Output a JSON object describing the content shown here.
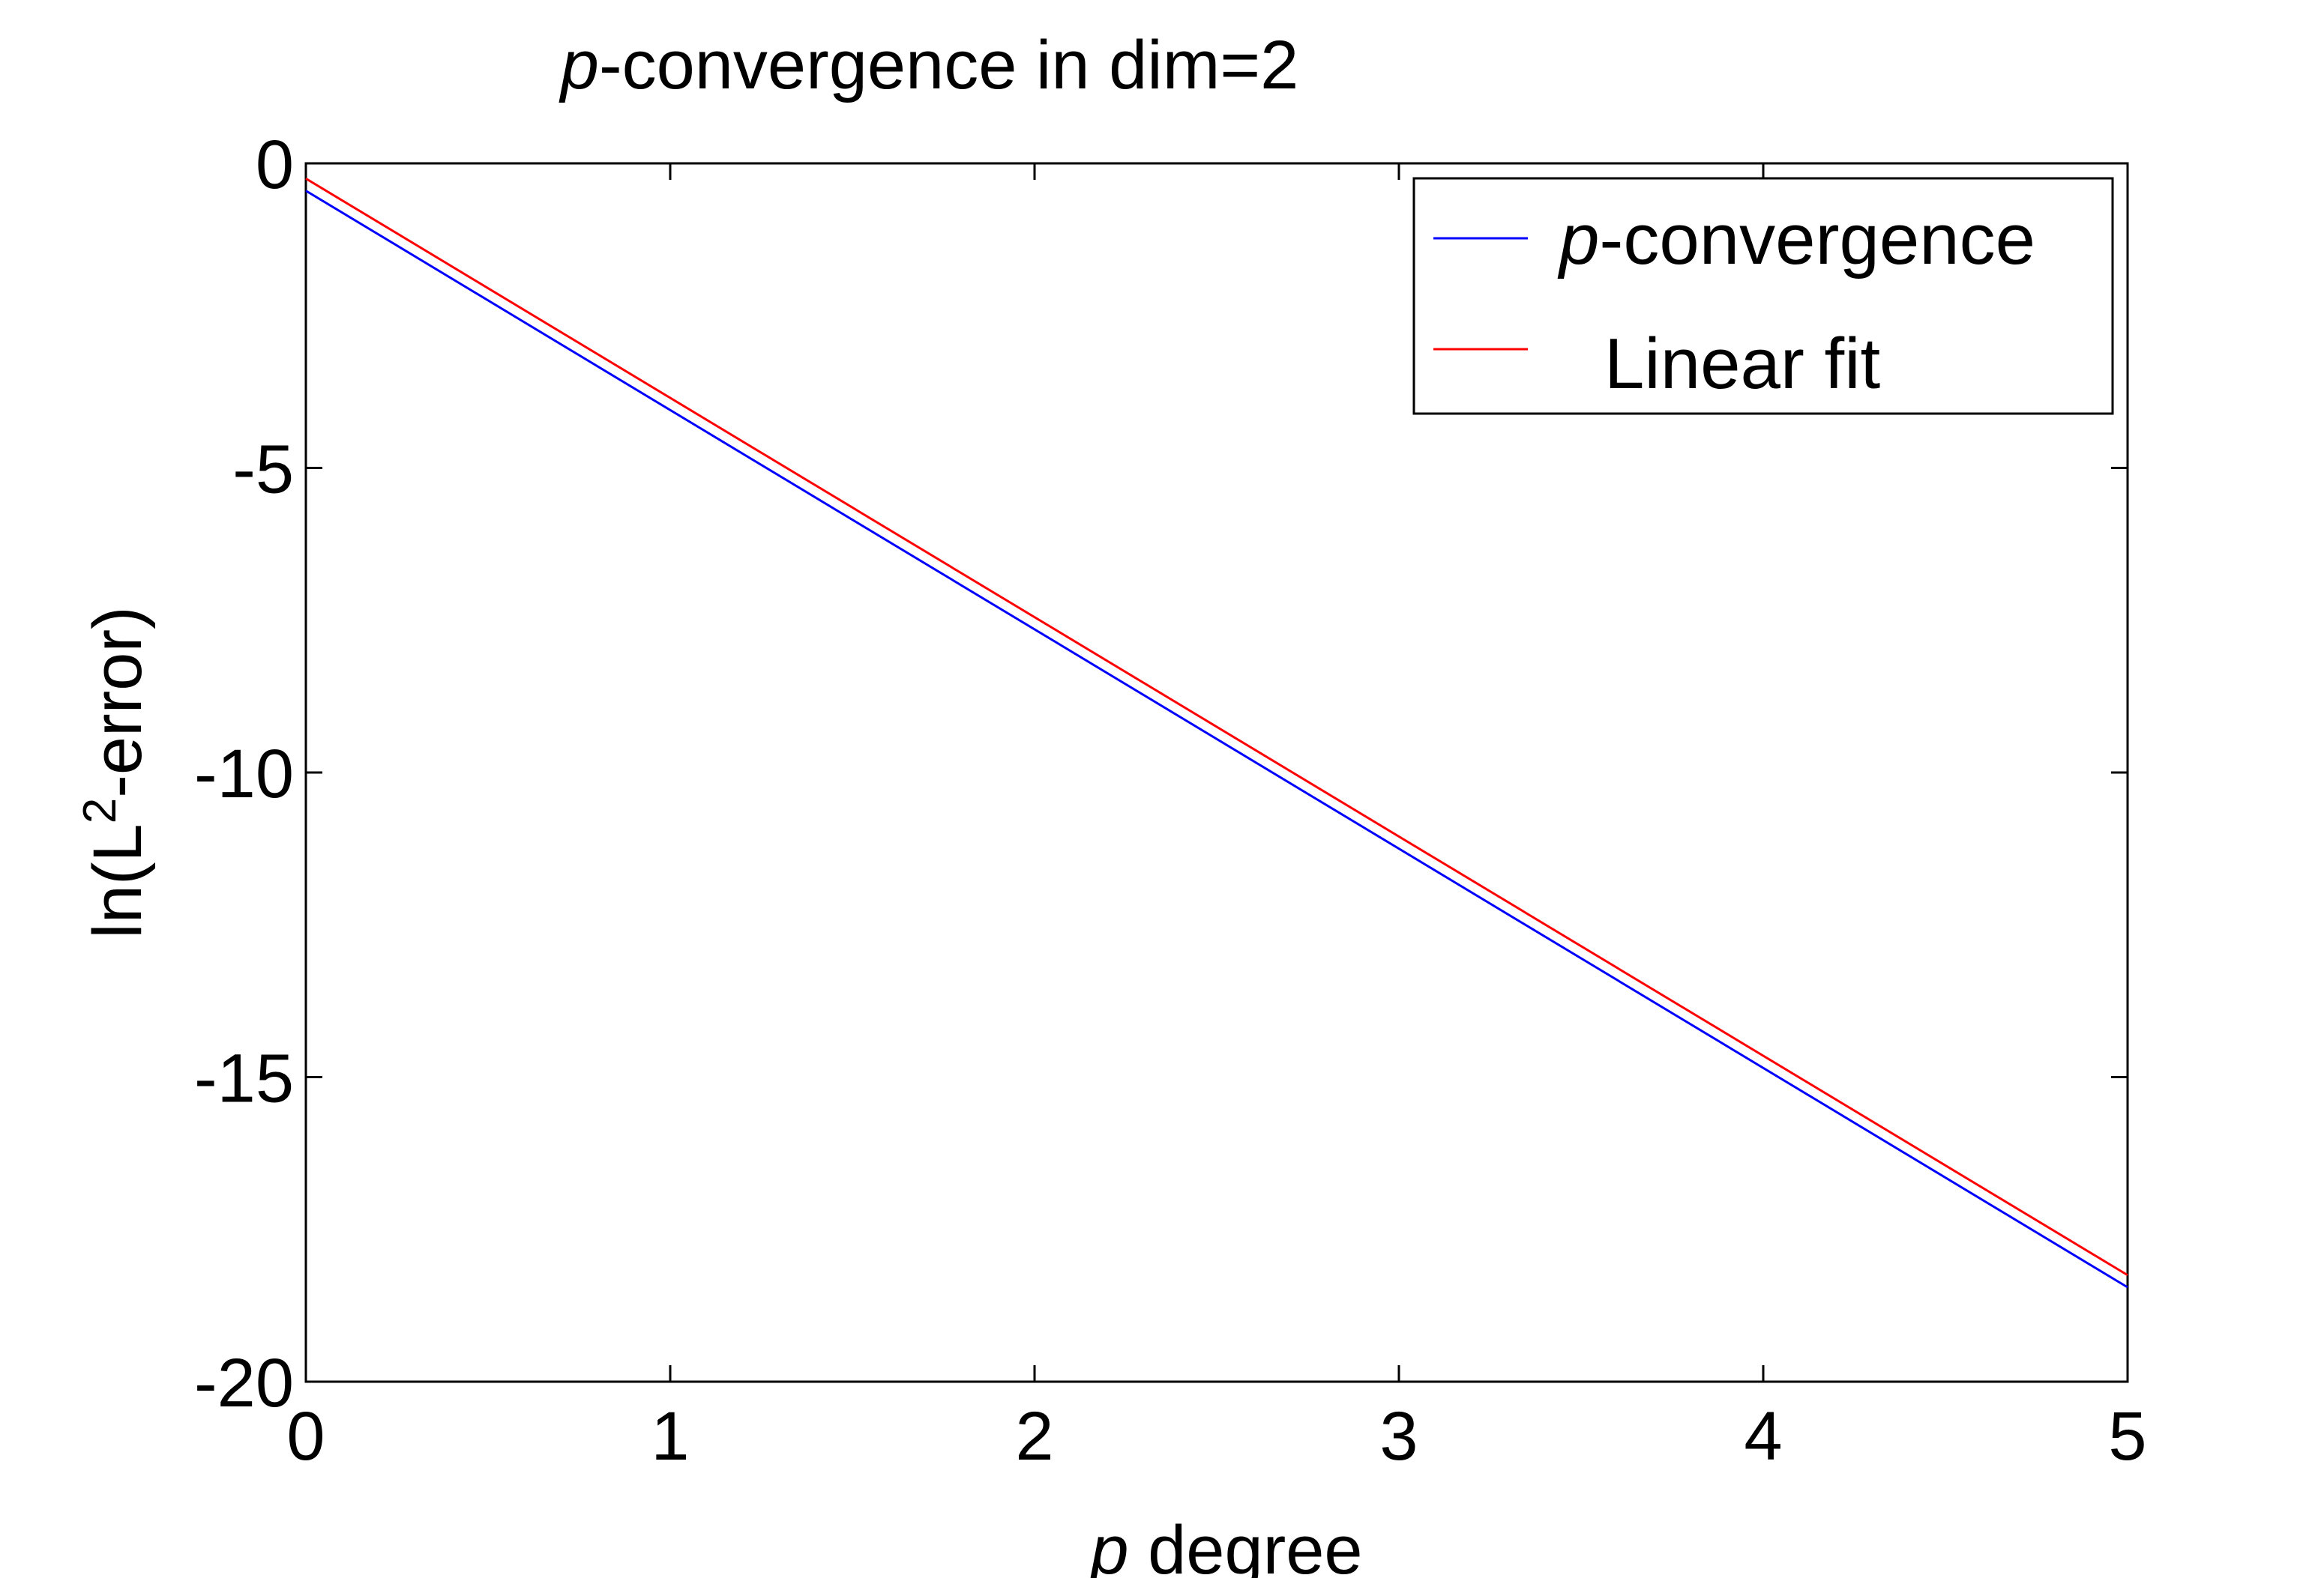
{
  "chart_data": {
    "type": "line",
    "title": {
      "prefix": "p",
      "rest": "-convergence in dim=2"
    },
    "xlabel": {
      "prefix": "p",
      "rest": " degree"
    },
    "ylabel": {
      "pre": "ln(L",
      "sup": "2",
      "post": "-error)"
    },
    "xlim": [
      0,
      5
    ],
    "ylim": [
      -20,
      0
    ],
    "xticks": [
      "0",
      "1",
      "2",
      "3",
      "4",
      "5"
    ],
    "yticks": [
      "0",
      "-5",
      "-10",
      "-15",
      "-20"
    ],
    "grid": false,
    "legend_position": "top-right",
    "series": [
      {
        "name_prefix": "p",
        "name_rest": "-convergence",
        "color": "#0000ff",
        "x": [
          0,
          5
        ],
        "y": [
          -0.45,
          -18.45
        ]
      },
      {
        "name_prefix": "",
        "name_rest": "Linear fit",
        "color": "#ff0000",
        "x": [
          0,
          5
        ],
        "y": [
          -0.25,
          -18.25
        ]
      }
    ]
  }
}
